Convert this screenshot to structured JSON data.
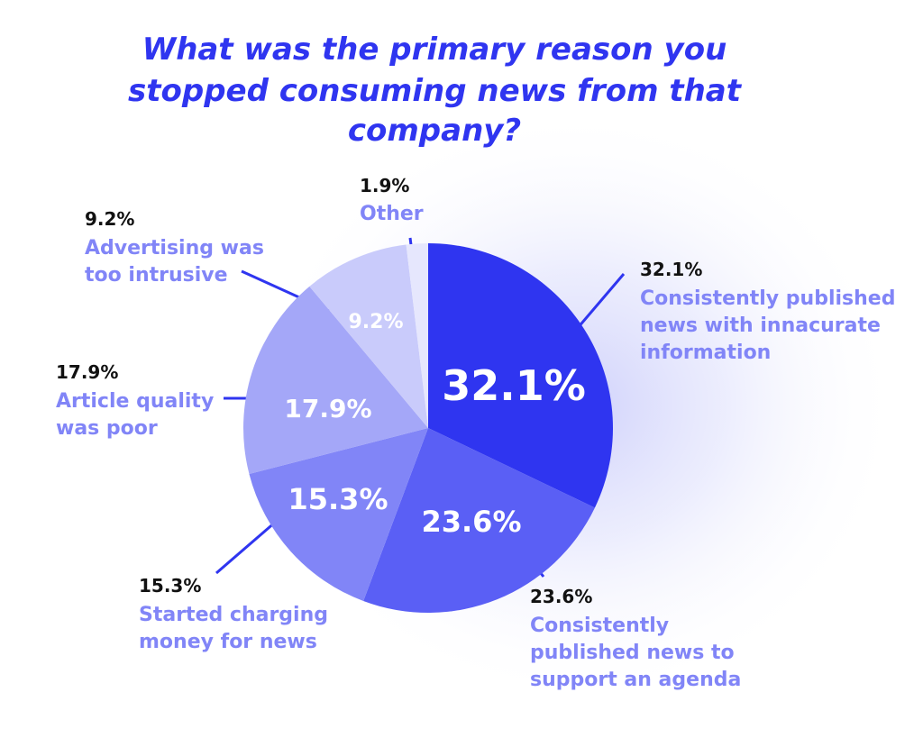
{
  "chart_data": {
    "type": "pie",
    "title": "What was the primary reason you stopped consuming news from that company?",
    "title_lines": [
      "What was the primary reason you",
      "stopped consuming news from that",
      "company?"
    ],
    "slices": [
      {
        "category": "Consistently published news with innacurate information",
        "value": 32.1,
        "value_label": "32.1%",
        "lines": [
          "Consistently published",
          "news with innacurate",
          "information"
        ],
        "color": "#2f35f0"
      },
      {
        "category": "Consistently published news to support an agenda",
        "value": 23.6,
        "value_label": "23.6%",
        "lines": [
          "Consistently",
          "published news to",
          "support an agenda"
        ],
        "color": "#5a5ff5"
      },
      {
        "category": "Started charging money for news",
        "value": 15.3,
        "value_label": "15.3%",
        "lines": [
          "Started charging",
          "money for news"
        ],
        "color": "#8185f7"
      },
      {
        "category": "Article quality was poor",
        "value": 17.9,
        "value_label": "17.9%",
        "lines": [
          "Article quality",
          "was poor"
        ],
        "color": "#a4a7f8"
      },
      {
        "category": "Advertising was too intrusive",
        "value": 9.2,
        "value_label": "9.2%",
        "lines": [
          "Advertising was",
          "too intrusive"
        ],
        "color": "#c9cbfb"
      },
      {
        "category": "Other",
        "value": 1.9,
        "value_label": "1.9%",
        "lines": [
          "Other"
        ],
        "color": "#e6e7fd"
      }
    ],
    "colors": {
      "title": "#2f35f0",
      "category_text": "#8185f7",
      "leader": "#2f35f0",
      "percent_text": "#111111",
      "inner_dark_label": "#2f35f0"
    }
  }
}
